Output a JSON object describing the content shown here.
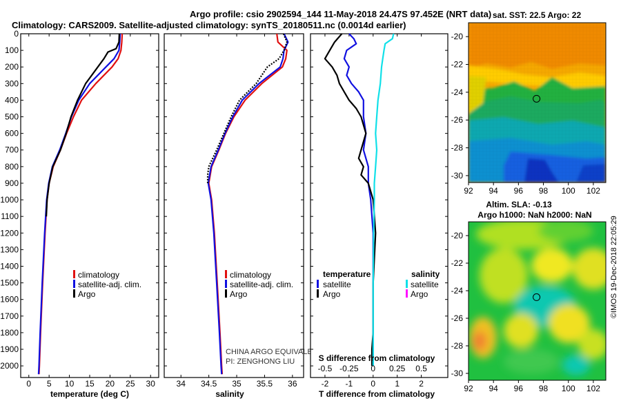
{
  "title_line1": "Argo profile: csio 2902594_144 11-May-2018 24.47S 97.452E (NRT data)",
  "title_line2": "Climatology: CARS2009. Satellite-adjusted climatology: synTS_20180511.nc (0.0014d earlier)",
  "watermark": "CHINA ARGO EQUIVALENT",
  "pi": "PI: ZENGHONG LIU",
  "timestamp": "©IMOS 19-Dec-2018 22:05:29",
  "colors": {
    "climatology": "#e01010",
    "satellite": "#1010e0",
    "argo": "#000000",
    "satellite_s": "#10e0e8",
    "argo_s": "#ff10ff"
  },
  "chart_data": [
    {
      "type": "line",
      "name": "temperature",
      "xlabel": "temperature (deg C)",
      "xlim": [
        -2,
        32
      ],
      "ylim": [
        2070,
        0
      ],
      "xticks": [
        0,
        5,
        10,
        15,
        20,
        25,
        30
      ],
      "yticks": [
        0,
        100,
        200,
        300,
        400,
        500,
        600,
        700,
        800,
        900,
        1000,
        1100,
        1200,
        1300,
        1400,
        1500,
        1600,
        1700,
        1800,
        1900,
        2000
      ],
      "legend": [
        "climatology",
        "satellite-adj. clim.",
        "Argo"
      ],
      "series": [
        {
          "name": "climatology",
          "depth": [
            0,
            50,
            100,
            150,
            200,
            300,
            400,
            500,
            600,
            700,
            800,
            900,
            1000,
            1200,
            1500,
            1800,
            2000,
            2050
          ],
          "values": [
            23.0,
            22.9,
            22.7,
            22.0,
            20.5,
            16.5,
            13.0,
            11.0,
            9.3,
            7.8,
            6.0,
            5.0,
            4.5,
            4.0,
            3.4,
            2.9,
            2.6,
            2.5
          ]
        },
        {
          "name": "satellite-adj. clim.",
          "depth": [
            0,
            50,
            100,
            150,
            200,
            300,
            400,
            500,
            600,
            700,
            800,
            900,
            1000,
            1200,
            1500,
            1800,
            2000,
            2050
          ],
          "values": [
            22.5,
            22.4,
            22.2,
            21.0,
            19.0,
            15.0,
            12.3,
            10.5,
            9.1,
            7.6,
            5.8,
            4.9,
            4.4,
            3.9,
            3.3,
            2.8,
            2.5,
            2.4
          ]
        },
        {
          "name": "Argo",
          "depth": [
            0,
            50,
            90,
            110,
            150,
            200,
            300,
            400,
            500,
            600,
            700,
            800,
            900,
            1000,
            1100
          ],
          "values": [
            22.3,
            22.2,
            21.5,
            19.5,
            18.5,
            17.0,
            14.0,
            12.0,
            10.4,
            9.2,
            7.8,
            5.9,
            5.0,
            4.5,
            4.3
          ]
        }
      ]
    },
    {
      "type": "line",
      "name": "salinity",
      "xlabel": "salinity",
      "xlim": [
        33.7,
        36.2
      ],
      "ylim": [
        2070,
        0
      ],
      "xticks": [
        34,
        34.5,
        35,
        35.5,
        36
      ],
      "legend": [
        "climatology",
        "satellite-adj. clim.",
        "Argo"
      ],
      "series": [
        {
          "name": "climatology",
          "depth": [
            0,
            50,
            100,
            150,
            200,
            300,
            400,
            500,
            600,
            700,
            800,
            900,
            1000,
            1200,
            1500,
            1800,
            2000,
            2050
          ],
          "values": [
            35.72,
            35.74,
            35.9,
            35.88,
            35.82,
            35.45,
            35.15,
            34.95,
            34.8,
            34.68,
            34.55,
            34.5,
            34.55,
            34.6,
            34.65,
            34.7,
            34.73,
            34.74
          ]
        },
        {
          "name": "satellite-adj. clim.",
          "depth": [
            0,
            50,
            100,
            150,
            200,
            300,
            400,
            500,
            600,
            700,
            800,
            900,
            1000,
            1200,
            1500,
            1800,
            2000,
            2050
          ],
          "values": [
            35.85,
            35.92,
            35.85,
            35.83,
            35.78,
            35.4,
            35.1,
            34.93,
            34.79,
            34.67,
            34.54,
            34.49,
            34.54,
            34.59,
            34.64,
            34.69,
            34.72,
            34.73
          ]
        },
        {
          "name": "Argo",
          "depth": [
            0,
            50,
            100,
            150,
            200,
            300,
            400,
            500,
            600,
            700,
            800,
            850,
            900
          ],
          "values": [
            35.84,
            35.9,
            35.85,
            35.76,
            35.55,
            35.35,
            35.05,
            34.9,
            34.77,
            34.64,
            34.5,
            34.48,
            34.48
          ]
        }
      ]
    },
    {
      "type": "line",
      "name": "difference",
      "xlabel": "T difference from climatology",
      "xlabel_top": "S difference from climatology",
      "xlim": [
        -2.6,
        3.1
      ],
      "ylim": [
        2070,
        0
      ],
      "xticks": [
        -2,
        -1,
        0,
        1,
        2
      ],
      "xticks_top": [
        "-0.5",
        "-0.25",
        "0",
        "0.25",
        "0.5"
      ],
      "legend_left_title": "temperature",
      "legend_right_title": "salinity",
      "legend_left": [
        "satellite",
        "Argo"
      ],
      "legend_right": [
        "satellite",
        "Argo"
      ],
      "series": [
        {
          "name": "T satellite",
          "depth": [
            0,
            30,
            60,
            100,
            150,
            200,
            250,
            300,
            350,
            400,
            500,
            600,
            700,
            800,
            900,
            1000,
            1200,
            1500,
            1800,
            2000
          ],
          "values": [
            -1.0,
            -0.8,
            -0.7,
            -1.1,
            -1.2,
            -1.0,
            -1.1,
            -0.9,
            -0.6,
            -0.4,
            -0.4,
            -0.3,
            -0.4,
            -0.2,
            -0.2,
            -0.1,
            0.0,
            0.0,
            0.0,
            0.0
          ]
        },
        {
          "name": "T Argo",
          "depth": [
            0,
            50,
            100,
            150,
            200,
            250,
            300,
            350,
            400,
            450,
            500,
            600,
            700,
            750,
            800,
            850,
            900,
            950,
            1000,
            1200,
            1500,
            1800,
            1900,
            2000
          ],
          "values": [
            -1.3,
            -1.6,
            -1.8,
            -2.0,
            -1.7,
            -1.5,
            -1.4,
            -1.2,
            -1.0,
            -0.7,
            -0.5,
            -0.3,
            -0.5,
            -0.6,
            -0.4,
            -0.5,
            -0.2,
            -0.1,
            0.0,
            0.1,
            0.0,
            0.0,
            -0.05,
            -0.05
          ]
        },
        {
          "name": "S satellite",
          "depth": [
            0,
            30,
            60,
            100,
            150,
            200,
            300,
            400,
            500,
            600,
            700,
            800,
            900,
            1000,
            1200,
            1500,
            1800,
            2000
          ],
          "values": [
            0.85,
            0.8,
            0.5,
            0.45,
            0.4,
            0.35,
            0.3,
            0.2,
            0.15,
            0.1,
            0.15,
            0.1,
            0.05,
            0.05,
            0.02,
            0.0,
            0.0,
            0.0
          ]
        }
      ]
    },
    {
      "type": "heatmap",
      "name": "sst_map",
      "title": "sat. SST: 22.5 Argo: 22",
      "xticks": [
        92,
        94,
        96,
        98,
        100,
        102
      ],
      "yticks": [
        -20,
        -22,
        -24,
        -26,
        -28,
        -30
      ],
      "argo_position": [
        97.45,
        -24.47
      ]
    },
    {
      "type": "heatmap",
      "name": "sla_map",
      "title": "Altim. SLA: -0.13",
      "subtitle": "Argo h1000: NaN h2000: NaN",
      "xticks": [
        92,
        94,
        96,
        98,
        100,
        102
      ],
      "yticks": [
        -20,
        -22,
        -24,
        -26,
        -28,
        -30
      ],
      "argo_position": [
        97.45,
        -24.47
      ]
    }
  ]
}
